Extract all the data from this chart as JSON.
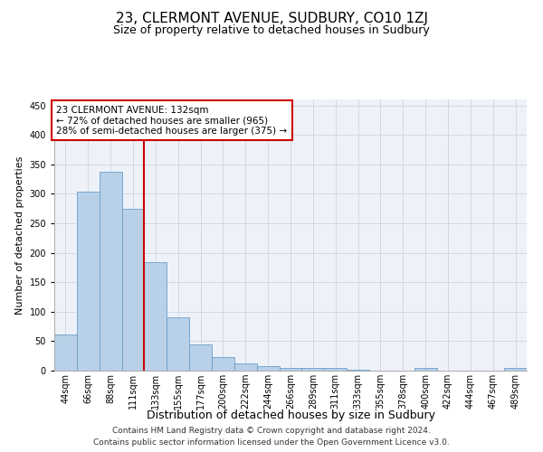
{
  "title": "23, CLERMONT AVENUE, SUDBURY, CO10 1ZJ",
  "subtitle": "Size of property relative to detached houses in Sudbury",
  "xlabel": "Distribution of detached houses by size in Sudbury",
  "ylabel": "Number of detached properties",
  "categories": [
    "44sqm",
    "66sqm",
    "88sqm",
    "111sqm",
    "133sqm",
    "155sqm",
    "177sqm",
    "200sqm",
    "222sqm",
    "244sqm",
    "266sqm",
    "289sqm",
    "311sqm",
    "333sqm",
    "355sqm",
    "378sqm",
    "400sqm",
    "422sqm",
    "444sqm",
    "467sqm",
    "489sqm"
  ],
  "values": [
    61,
    303,
    338,
    275,
    184,
    90,
    45,
    23,
    13,
    7,
    4,
    5,
    4,
    2,
    0,
    0,
    4,
    0,
    0,
    0,
    4
  ],
  "bar_color": "#b8d0e8",
  "bar_edge_color": "#6a9fc8",
  "vline_x_index": 4,
  "vline_color": "#cc0000",
  "annotation_line1": "23 CLERMONT AVENUE: 132sqm",
  "annotation_line2": "← 72% of detached houses are smaller (965)",
  "annotation_line3": "28% of semi-detached houses are larger (375) →",
  "annotation_box_color": "#ffffff",
  "annotation_box_edge_color": "#cc0000",
  "ylim": [
    0,
    460
  ],
  "yticks": [
    0,
    50,
    100,
    150,
    200,
    250,
    300,
    350,
    400,
    450
  ],
  "grid_color": "#d0d8e8",
  "background_color": "#eef2f8",
  "footnote1": "Contains HM Land Registry data © Crown copyright and database right 2024.",
  "footnote2": "Contains public sector information licensed under the Open Government Licence v3.0.",
  "title_fontsize": 11,
  "subtitle_fontsize": 9,
  "xlabel_fontsize": 9,
  "ylabel_fontsize": 8,
  "tick_fontsize": 7,
  "annotation_fontsize": 7.5,
  "footnote_fontsize": 6.5
}
